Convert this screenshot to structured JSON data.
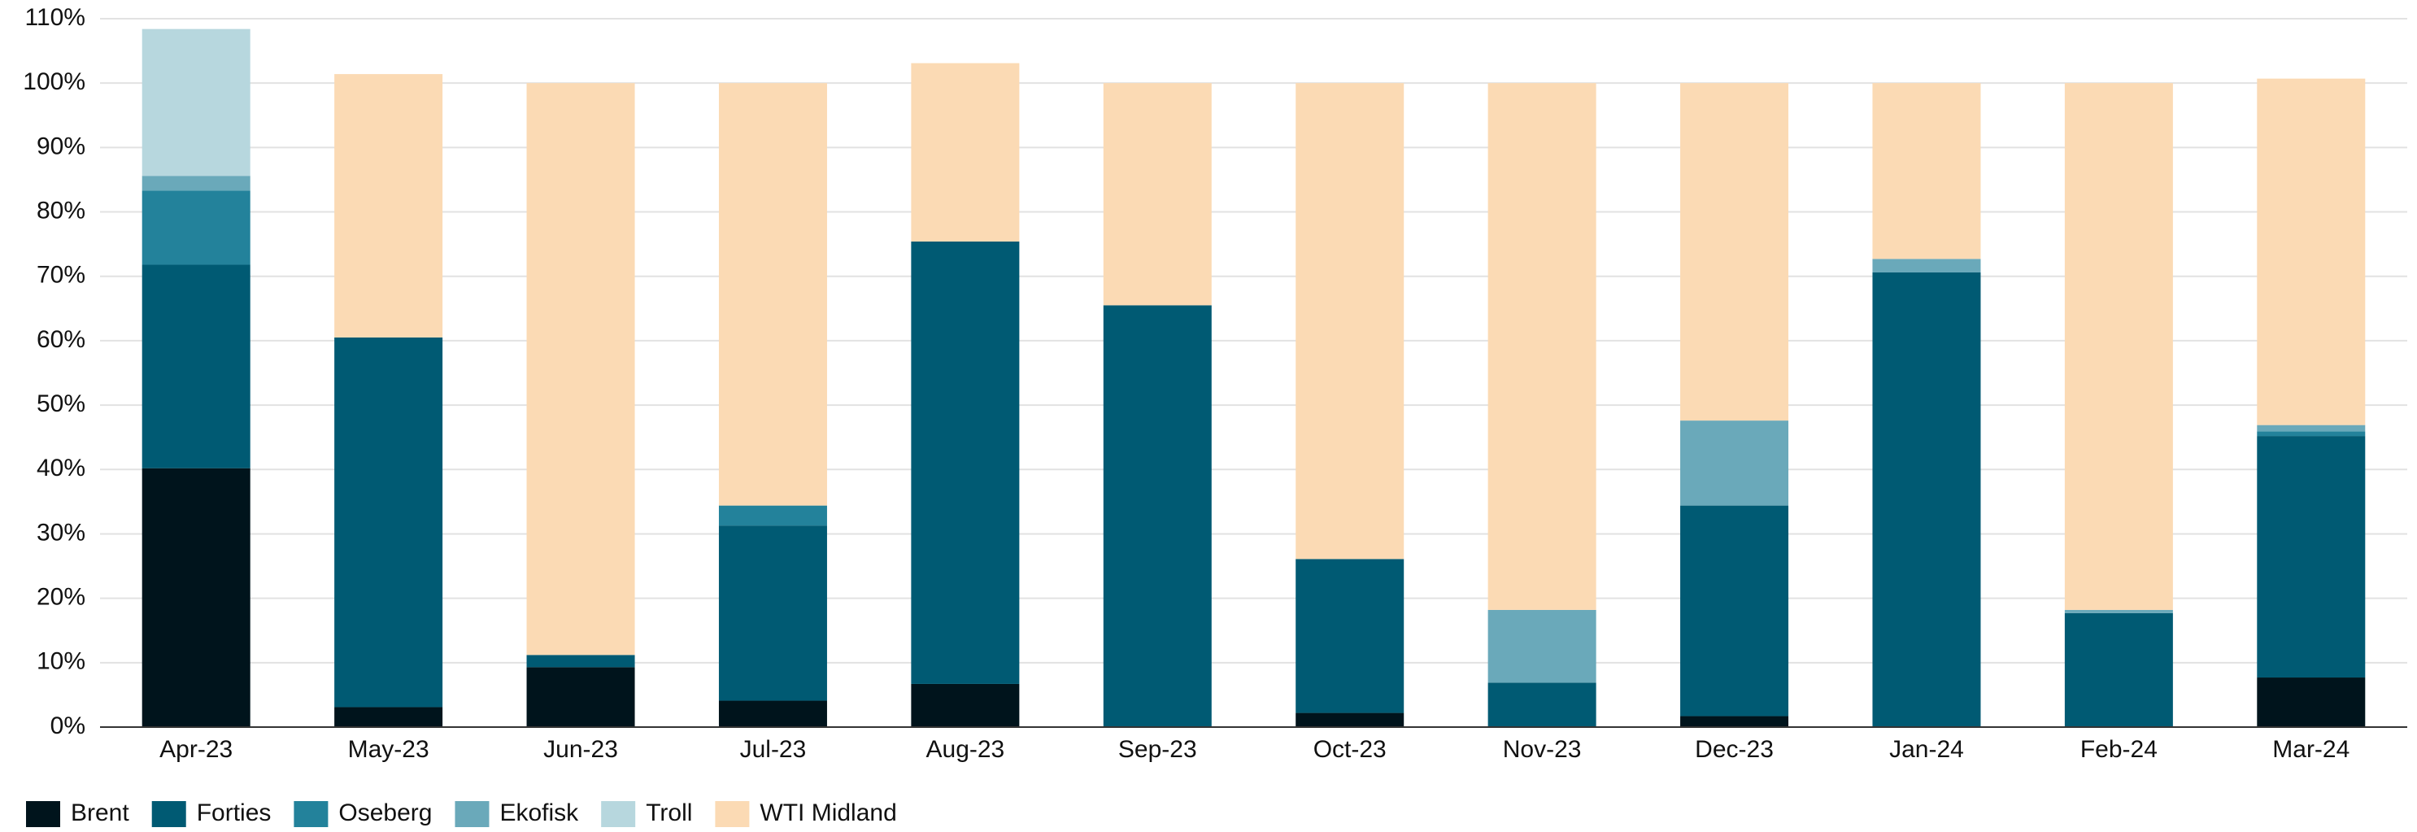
{
  "chart_data": {
    "type": "stacked_bar",
    "categories": [
      "Apr-23",
      "May-23",
      "Jun-23",
      "Jul-23",
      "Aug-23",
      "Sep-23",
      "Oct-23",
      "Nov-23",
      "Dec-23",
      "Jan-24",
      "Feb-24",
      "Mar-24"
    ],
    "series": [
      {
        "name": "Brent",
        "color": "#00141c",
        "values": [
          40.2,
          3.1,
          9.3,
          4.1,
          6.7,
          0,
          2.2,
          0,
          1.7,
          0,
          0,
          7.7
        ]
      },
      {
        "name": "Forties",
        "color": "#005a73",
        "values": [
          31.6,
          57.4,
          1.9,
          27.2,
          68.7,
          65.5,
          23.9,
          6.9,
          32.7,
          70.6,
          17.7,
          37.5
        ]
      },
      {
        "name": "Oseberg",
        "color": "#23829b",
        "values": [
          11.5,
          0,
          0,
          3.1,
          0,
          0,
          0,
          0,
          0,
          0,
          0,
          0.7
        ]
      },
      {
        "name": "Ekofisk",
        "color": "#6aa9ba",
        "values": [
          2.3,
          0,
          0,
          0,
          0,
          0,
          0,
          11.3,
          13.2,
          2.1,
          0.5,
          1.0
        ]
      },
      {
        "name": "Troll",
        "color": "#b7d7de",
        "values": [
          22.8,
          0,
          0,
          0,
          0,
          0,
          0,
          0,
          0,
          0,
          0,
          0
        ]
      },
      {
        "name": "WTI Midland",
        "color": "#fbdab4",
        "values": [
          0,
          40.9,
          88.8,
          65.6,
          27.7,
          34.5,
          73.9,
          81.8,
          52.4,
          27.3,
          81.8,
          53.8
        ]
      }
    ],
    "ylim": [
      0,
      110
    ],
    "yticks": [
      {
        "value": 0,
        "label": "0%"
      },
      {
        "value": 10,
        "label": "10%"
      },
      {
        "value": 20,
        "label": "20%"
      },
      {
        "value": 30,
        "label": "30%"
      },
      {
        "value": 40,
        "label": "40%"
      },
      {
        "value": 50,
        "label": "50%"
      },
      {
        "value": 60,
        "label": "60%"
      },
      {
        "value": 70,
        "label": "70%"
      },
      {
        "value": 80,
        "label": "80%"
      },
      {
        "value": 90,
        "label": "90%"
      },
      {
        "value": 100,
        "label": "100%"
      },
      {
        "value": 110,
        "label": "110%"
      }
    ],
    "grid": true,
    "legend": "bottom-left"
  }
}
